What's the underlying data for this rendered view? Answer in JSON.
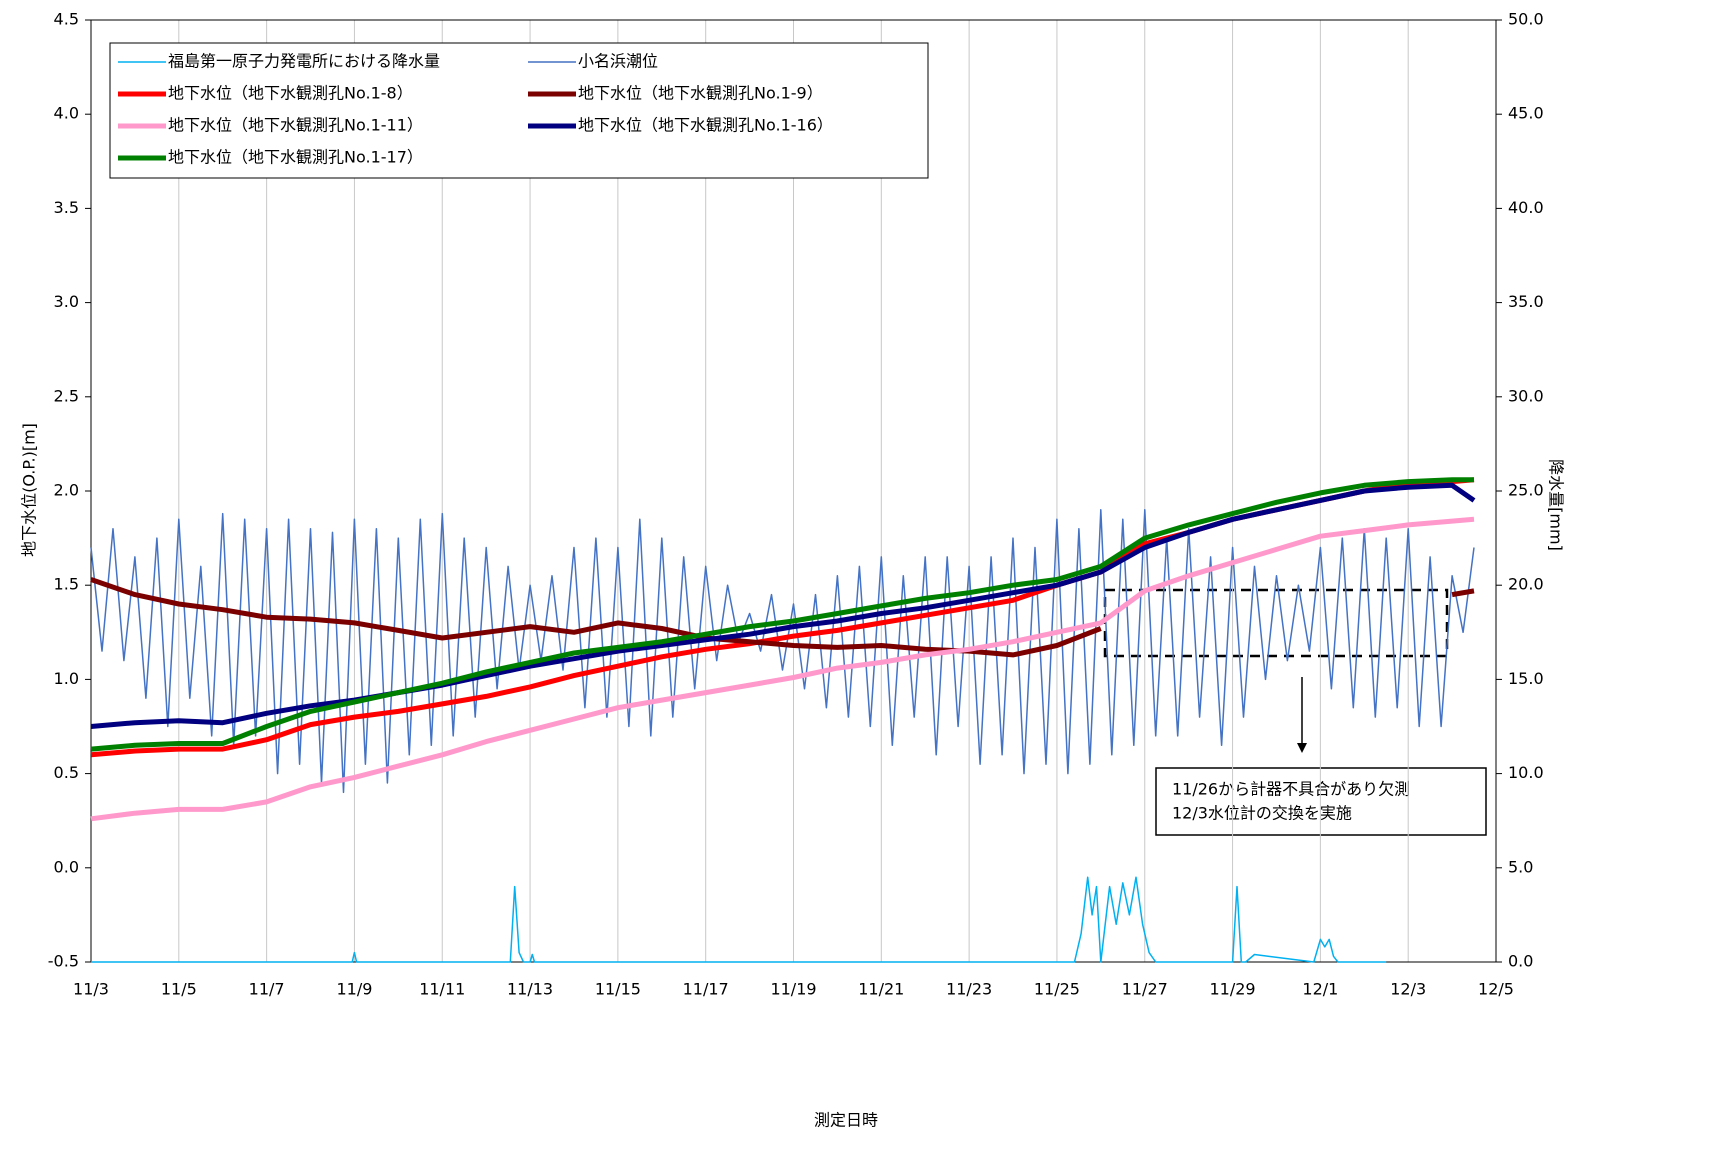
{
  "chart_data": {
    "type": "line",
    "y_label": "地下水位(O.P.)[m]",
    "y2_label": "降水量[mm]",
    "x_label": "測定日時",
    "annotations": [
      "11/26から計器不具合があり欠測",
      "12/3水位計の交換を実施"
    ],
    "legend": "upper left",
    "grid": true,
    "xlim": [
      0,
      32
    ],
    "xticks": [
      {
        "value": 0,
        "label": "11/3"
      },
      {
        "value": 2,
        "label": "11/5"
      },
      {
        "value": 4,
        "label": "11/7"
      },
      {
        "value": 6,
        "label": "11/9"
      },
      {
        "value": 8,
        "label": "11/11"
      },
      {
        "value": 10,
        "label": "11/13"
      },
      {
        "value": 12,
        "label": "11/15"
      },
      {
        "value": 14,
        "label": "11/17"
      },
      {
        "value": 16,
        "label": "11/19"
      },
      {
        "value": 18,
        "label": "11/21"
      },
      {
        "value": 20,
        "label": "11/23"
      },
      {
        "value": 22,
        "label": "11/25"
      },
      {
        "value": 24,
        "label": "11/27"
      },
      {
        "value": 26,
        "label": "11/29"
      },
      {
        "value": 28,
        "label": "12/1"
      },
      {
        "value": 30,
        "label": "12/3"
      },
      {
        "value": 32,
        "label": "12/5"
      }
    ],
    "ylim": [
      -0.5,
      4.5
    ],
    "yticks": [
      -0.5,
      {
        "value": 0,
        "label": "0.0"
      },
      0.5,
      {
        "value": 1,
        "label": "1.0"
      },
      1.5,
      {
        "value": 2,
        "label": "2.0"
      },
      2.5,
      {
        "value": 3,
        "label": "3.0"
      },
      3.5,
      {
        "value": 4,
        "label": "4.0"
      },
      4.5
    ],
    "y2lim": [
      0,
      50
    ],
    "y2ticks": [
      {
        "value": 0,
        "label": "0.0"
      },
      {
        "value": 5,
        "label": "5.0"
      },
      {
        "value": 10,
        "label": "10.0"
      },
      {
        "value": 15,
        "label": "15.0"
      },
      {
        "value": 20,
        "label": "20.0"
      },
      {
        "value": 25,
        "label": "25.0"
      },
      {
        "value": 30,
        "label": "30.0"
      },
      {
        "value": 35,
        "label": "35.0"
      },
      {
        "value": 40,
        "label": "40.0"
      },
      {
        "value": 45,
        "label": "45.0"
      },
      {
        "value": 50,
        "label": "50.0"
      }
    ],
    "x": [
      0,
      1,
      2,
      3,
      4,
      5,
      6,
      7,
      8,
      9,
      10,
      11,
      12,
      13,
      14,
      15,
      16,
      17,
      18,
      19,
      20,
      21,
      22,
      23,
      24,
      25,
      26,
      27,
      28,
      29,
      30,
      31,
      31.5
    ],
    "series": [
      {
        "name": "福島第一原子力発電所における降水量",
        "color": "#00b0f0",
        "axis": "y2",
        "x": [
          0,
          5.95,
          6.0,
          6.05,
          9.55,
          9.65,
          9.75,
          9.85,
          10.0,
          10.05,
          10.1,
          22.4,
          22.55,
          22.7,
          22.8,
          22.9,
          23.0,
          23.2,
          23.35,
          23.5,
          23.65,
          23.8,
          23.95,
          24.1,
          24.25,
          24.4,
          24.55,
          26.0,
          26.1,
          26.2,
          26.3,
          26.5,
          27.85,
          28.0,
          28.1,
          28.2,
          28.3,
          28.4,
          29.5
        ],
        "values": [
          0,
          0,
          0.5,
          0,
          0,
          4.0,
          0.5,
          0,
          0,
          0.4,
          0,
          0,
          1.5,
          4.5,
          2.5,
          4.0,
          0,
          4.0,
          2.0,
          4.2,
          2.5,
          4.5,
          2.0,
          0.5,
          0,
          0,
          0,
          0,
          4.0,
          0,
          0,
          0.4,
          0,
          1.2,
          0.8,
          1.2,
          0.3,
          0,
          0
        ]
      },
      {
        "name": "小名浜潮位",
        "color": "#4472c4",
        "x": [
          0,
          0.25,
          0.5,
          0.75,
          1,
          1.25,
          1.5,
          1.75,
          2,
          2.25,
          2.5,
          2.75,
          3,
          3.25,
          3.5,
          3.75,
          4,
          4.25,
          4.5,
          4.75,
          5,
          5.25,
          5.5,
          5.75,
          6,
          6.25,
          6.5,
          6.75,
          7,
          7.25,
          7.5,
          7.75,
          8,
          8.25,
          8.5,
          8.75,
          9,
          9.25,
          9.5,
          9.75,
          10,
          10.25,
          10.5,
          10.75,
          11,
          11.25,
          11.5,
          11.75,
          12,
          12.25,
          12.5,
          12.75,
          13,
          13.25,
          13.5,
          13.75,
          14,
          14.25,
          14.5,
          14.75,
          15,
          15.25,
          15.5,
          15.75,
          16,
          16.25,
          16.5,
          16.75,
          17,
          17.25,
          17.5,
          17.75,
          18,
          18.25,
          18.5,
          18.75,
          19,
          19.25,
          19.5,
          19.75,
          20,
          20.25,
          20.5,
          20.75,
          21,
          21.25,
          21.5,
          21.75,
          22,
          22.25,
          22.5,
          22.75,
          23,
          23.25,
          23.5,
          23.75,
          24,
          24.25,
          24.5,
          24.75,
          25,
          25.25,
          25.5,
          25.75,
          26,
          26.25,
          26.5,
          26.75,
          27,
          27.25,
          27.5,
          27.75,
          28,
          28.25,
          28.5,
          28.75,
          29,
          29.25,
          29.5,
          29.75,
          30,
          30.25,
          30.5,
          30.75,
          31,
          31.25,
          31.5
        ],
        "values": [
          1.7,
          1.15,
          1.8,
          1.1,
          1.65,
          0.9,
          1.75,
          0.75,
          1.85,
          0.9,
          1.6,
          0.7,
          1.88,
          0.65,
          1.85,
          0.7,
          1.8,
          0.5,
          1.85,
          0.55,
          1.8,
          0.45,
          1.78,
          0.4,
          1.85,
          0.55,
          1.8,
          0.45,
          1.75,
          0.6,
          1.85,
          0.65,
          1.88,
          0.7,
          1.75,
          0.8,
          1.7,
          0.95,
          1.6,
          1.05,
          1.5,
          1.1,
          1.55,
          1.05,
          1.7,
          0.85,
          1.75,
          0.8,
          1.7,
          0.75,
          1.85,
          0.7,
          1.75,
          0.8,
          1.65,
          0.95,
          1.6,
          1.1,
          1.5,
          1.2,
          1.35,
          1.15,
          1.45,
          1.05,
          1.4,
          0.95,
          1.45,
          0.85,
          1.55,
          0.8,
          1.6,
          0.75,
          1.65,
          0.65,
          1.55,
          0.8,
          1.65,
          0.6,
          1.65,
          0.75,
          1.6,
          0.55,
          1.65,
          0.6,
          1.75,
          0.5,
          1.7,
          0.55,
          1.85,
          0.5,
          1.8,
          0.55,
          1.9,
          0.6,
          1.85,
          0.65,
          1.9,
          0.7,
          1.75,
          0.7,
          1.8,
          0.8,
          1.65,
          0.65,
          1.7,
          0.8,
          1.6,
          1.0,
          1.55,
          1.1,
          1.5,
          1.15,
          1.7,
          0.95,
          1.75,
          0.85,
          1.8,
          0.8,
          1.75,
          0.85,
          1.8,
          0.75,
          1.65,
          0.75,
          1.55,
          1.25,
          1.7
        ]
      },
      {
        "name": "地下水位（地下水観測孔No.1-8）",
        "color": "#ff0000",
        "values": [
          0.6,
          0.62,
          0.63,
          0.63,
          0.68,
          0.76,
          0.8,
          0.83,
          0.87,
          0.91,
          0.96,
          1.02,
          1.07,
          1.12,
          1.16,
          1.19,
          1.23,
          1.26,
          1.3,
          1.34,
          1.38,
          1.42,
          1.5,
          1.57,
          1.72,
          1.78,
          1.85,
          1.9,
          1.95,
          2.0,
          2.04,
          2.05,
          2.06
        ]
      },
      {
        "name": "地下水位（地下水観測孔No.1-9）",
        "color": "#7b0000",
        "values": [
          1.53,
          1.45,
          1.4,
          1.37,
          1.33,
          1.32,
          1.3,
          1.26,
          1.22,
          1.25,
          1.28,
          1.25,
          1.3,
          1.27,
          1.22,
          1.2,
          1.18,
          1.17,
          1.18,
          1.16,
          1.15,
          1.13,
          1.18,
          1.27,
          null,
          null,
          null,
          null,
          null,
          null,
          null,
          1.45,
          1.47
        ]
      },
      {
        "name": "地下水位（地下水観測孔No.1-11）",
        "color": "#ff99cc",
        "values": [
          0.26,
          0.29,
          0.31,
          0.31,
          0.35,
          0.43,
          0.48,
          0.54,
          0.6,
          0.67,
          0.73,
          0.79,
          0.85,
          0.89,
          0.93,
          0.97,
          1.01,
          1.06,
          1.09,
          1.13,
          1.16,
          1.2,
          1.25,
          1.3,
          1.47,
          1.55,
          1.62,
          1.69,
          1.76,
          1.79,
          1.82,
          1.84,
          1.85
        ]
      },
      {
        "name": "地下水位（地下水観測孔No.1-16）",
        "color": "#000080",
        "values": [
          0.75,
          0.77,
          0.78,
          0.77,
          0.82,
          0.86,
          0.89,
          0.93,
          0.97,
          1.02,
          1.07,
          1.11,
          1.15,
          1.18,
          1.21,
          1.24,
          1.28,
          1.31,
          1.35,
          1.38,
          1.42,
          1.46,
          1.5,
          1.57,
          1.7,
          1.78,
          1.85,
          1.9,
          1.95,
          2.0,
          2.02,
          2.03,
          1.95
        ]
      },
      {
        "name": "地下水位（地下水観測孔No.1-17）",
        "color": "#008000",
        "values": [
          0.63,
          0.65,
          0.66,
          0.66,
          0.75,
          0.83,
          0.88,
          0.93,
          0.98,
          1.04,
          1.09,
          1.14,
          1.17,
          1.2,
          1.24,
          1.28,
          1.31,
          1.35,
          1.39,
          1.43,
          1.46,
          1.5,
          1.53,
          1.6,
          1.75,
          1.82,
          1.88,
          1.94,
          1.99,
          2.03,
          2.05,
          2.06,
          2.06
        ]
      }
    ]
  }
}
